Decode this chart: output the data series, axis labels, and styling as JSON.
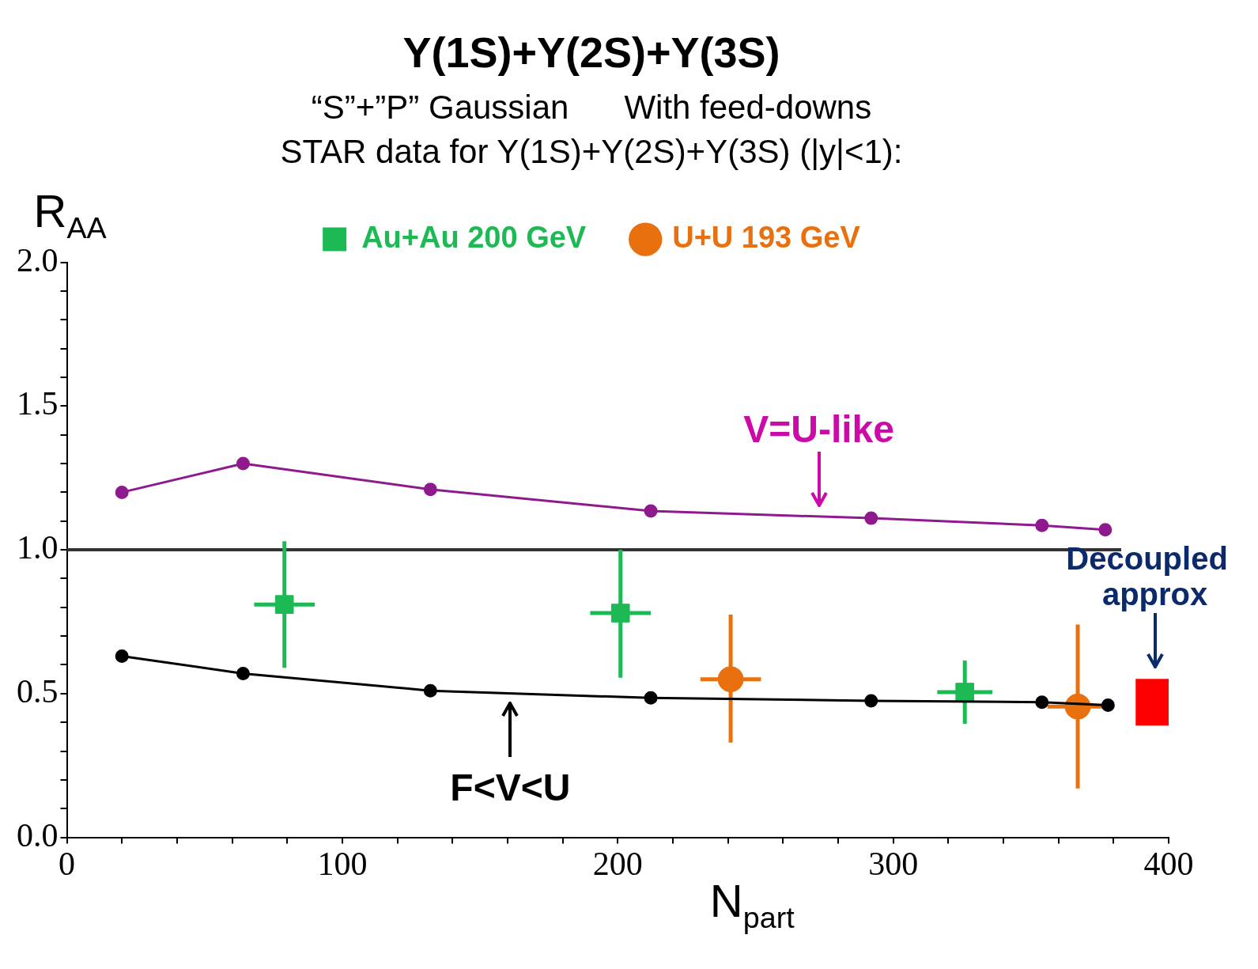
{
  "chart_data": {
    "type": "line",
    "title": "Y(1S)+Y(2S)+Y(3S)",
    "subtitle": "“S”+”P” Gaussian      With feed-downs",
    "legend_title": "STAR data for Y(1S)+Y(2S)+Y(3S) (|y|<1):",
    "xlabel": "N$_{part}$",
    "ylabel": "R$_{AA}$",
    "xlim": [
      0,
      400
    ],
    "xticks": [
      0,
      {
        "value": 20,
        "label": null
      },
      {
        "value": 40,
        "label": null
      },
      {
        "value": 60,
        "label": null
      },
      {
        "value": 80,
        "label": null
      },
      100,
      {
        "value": 120,
        "label": null
      },
      {
        "value": 140,
        "label": null
      },
      {
        "value": 160,
        "label": null
      },
      {
        "value": 180,
        "label": null
      },
      200,
      {
        "value": 220,
        "label": null
      },
      {
        "value": 240,
        "label": null
      },
      {
        "value": 260,
        "label": null
      },
      {
        "value": 280,
        "label": null
      },
      300,
      {
        "value": 320,
        "label": null
      },
      {
        "value": 340,
        "label": null
      },
      {
        "value": 360,
        "label": null
      },
      {
        "value": 380,
        "label": null
      },
      400
    ],
    "ylim": [
      0,
      2
    ],
    "yticks": [
      {
        "value": 0,
        "label": "0.0"
      },
      {
        "value": 0.1,
        "label": null
      },
      {
        "value": 0.2,
        "label": null
      },
      {
        "value": 0.3,
        "label": null
      },
      {
        "value": 0.4,
        "label": null
      },
      {
        "value": 0.5,
        "label": "0.5"
      },
      {
        "value": 0.6,
        "label": null
      },
      {
        "value": 0.7,
        "label": null
      },
      {
        "value": 0.8,
        "label": null
      },
      {
        "value": 0.9,
        "label": null
      },
      {
        "value": 1,
        "label": "1.0"
      },
      {
        "value": 1.1,
        "label": null
      },
      {
        "value": 1.2,
        "label": null
      },
      {
        "value": 1.3,
        "label": null
      },
      {
        "value": 1.4,
        "label": null
      },
      {
        "value": 1.5,
        "label": "1.5"
      },
      {
        "value": 1.6,
        "label": null
      },
      {
        "value": 1.7,
        "label": null
      },
      {
        "value": 1.8,
        "label": null
      },
      {
        "value": 1.9,
        "label": null
      },
      {
        "value": 2,
        "label": "2.0"
      }
    ],
    "grid": false,
    "legend": "top",
    "series": [
      {
        "color": "#8e1a8e",
        "marker": "circle",
        "x": [
          20,
          64,
          132,
          212,
          292,
          354,
          377
        ],
        "values": [
          1.2,
          1.3,
          1.21,
          1.135,
          1.11,
          1.085,
          1.07
        ]
      },
      {
        "color": "#000000",
        "marker": "circle",
        "x": [
          20,
          64,
          132,
          212,
          292,
          354,
          378
        ],
        "values": [
          0.63,
          0.57,
          0.51,
          0.485,
          0.475,
          0.47,
          0.46
        ]
      },
      {
        "type": "scatter",
        "name": "Au+Au 200 GeV",
        "color": "#1db954",
        "marker": "square",
        "x": [
          79,
          201,
          326
        ],
        "values": [
          0.81,
          0.78,
          0.505
        ],
        "errors": [
          [
            0.59,
            1.03
          ],
          [
            0.555,
            1.0
          ],
          [
            0.395,
            0.615
          ]
        ],
        "xerrors": [
          11,
          11,
          10
        ]
      },
      {
        "type": "scatter",
        "name": "U+U 193 GeV",
        "color": "#e8700f",
        "marker": "circle",
        "x": [
          241,
          367
        ],
        "values": [
          0.55,
          0.455
        ],
        "errors": [
          [
            0.33,
            0.775
          ],
          [
            0.17,
            0.74
          ]
        ],
        "xerrors": [
          11,
          11
        ]
      },
      {
        "type": "bar",
        "color": "#ff0000",
        "x": [
          395
        ],
        "base": [
          0.39
        ],
        "values": [
          0.16
        ]
      }
    ],
    "ref_lines": [
      {
        "axis": "y",
        "value": 1,
        "color": "#333333"
      }
    ],
    "annotations": [
      {
        "text": "V=U-like",
        "x": 273,
        "y": 1.12
      },
      {
        "text": "F<V<U",
        "x": 161,
        "y": 0.5
      },
      {
        "text": "Decoupled approx",
        "x": 395,
        "y": 0.56
      }
    ]
  }
}
